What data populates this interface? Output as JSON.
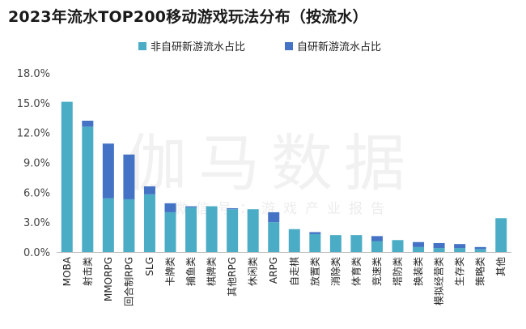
{
  "chart_data": {
    "type": "bar",
    "stacked": true,
    "title": "2023年流水TOP200移动游戏玩法分布（按流水）",
    "categories": [
      "MOBA",
      "射击类",
      "MMORPG",
      "回合制RPG",
      "SLG",
      "卡牌类",
      "捕鱼类",
      "棋牌类",
      "其他RPG",
      "休闲类",
      "ARPG",
      "自走棋",
      "放置类",
      "消除类",
      "体育类",
      "竞速类",
      "塔防类",
      "换装类",
      "模拟经营类",
      "生存类",
      "策略类",
      "其他"
    ],
    "series": [
      {
        "name": "非自研新游流水占比",
        "color": "#4bacc6",
        "values": [
          15.1,
          12.6,
          5.4,
          5.3,
          5.8,
          4.0,
          4.5,
          4.6,
          4.3,
          4.3,
          3.0,
          2.3,
          1.8,
          1.7,
          1.7,
          1.1,
          1.2,
          0.5,
          0.4,
          0.4,
          0.3,
          3.4
        ]
      },
      {
        "name": "自研新游流水占比",
        "color": "#4472c4",
        "values": [
          0.0,
          0.6,
          5.5,
          4.5,
          0.8,
          0.9,
          0.1,
          0.0,
          0.1,
          0.0,
          1.0,
          0.0,
          0.2,
          0.0,
          0.0,
          0.5,
          0.0,
          0.5,
          0.5,
          0.4,
          0.2,
          0.0
        ]
      }
    ],
    "yticks": [
      "0.0%",
      "3.0%",
      "6.0%",
      "9.0%",
      "12.0%",
      "15.0%",
      "18.0%"
    ],
    "ylim": [
      0,
      18
    ],
    "grid": false,
    "legend_position": "top-center"
  },
  "watermark": {
    "main": "伽马数据",
    "sub": "微信号：游戏产业报告"
  }
}
